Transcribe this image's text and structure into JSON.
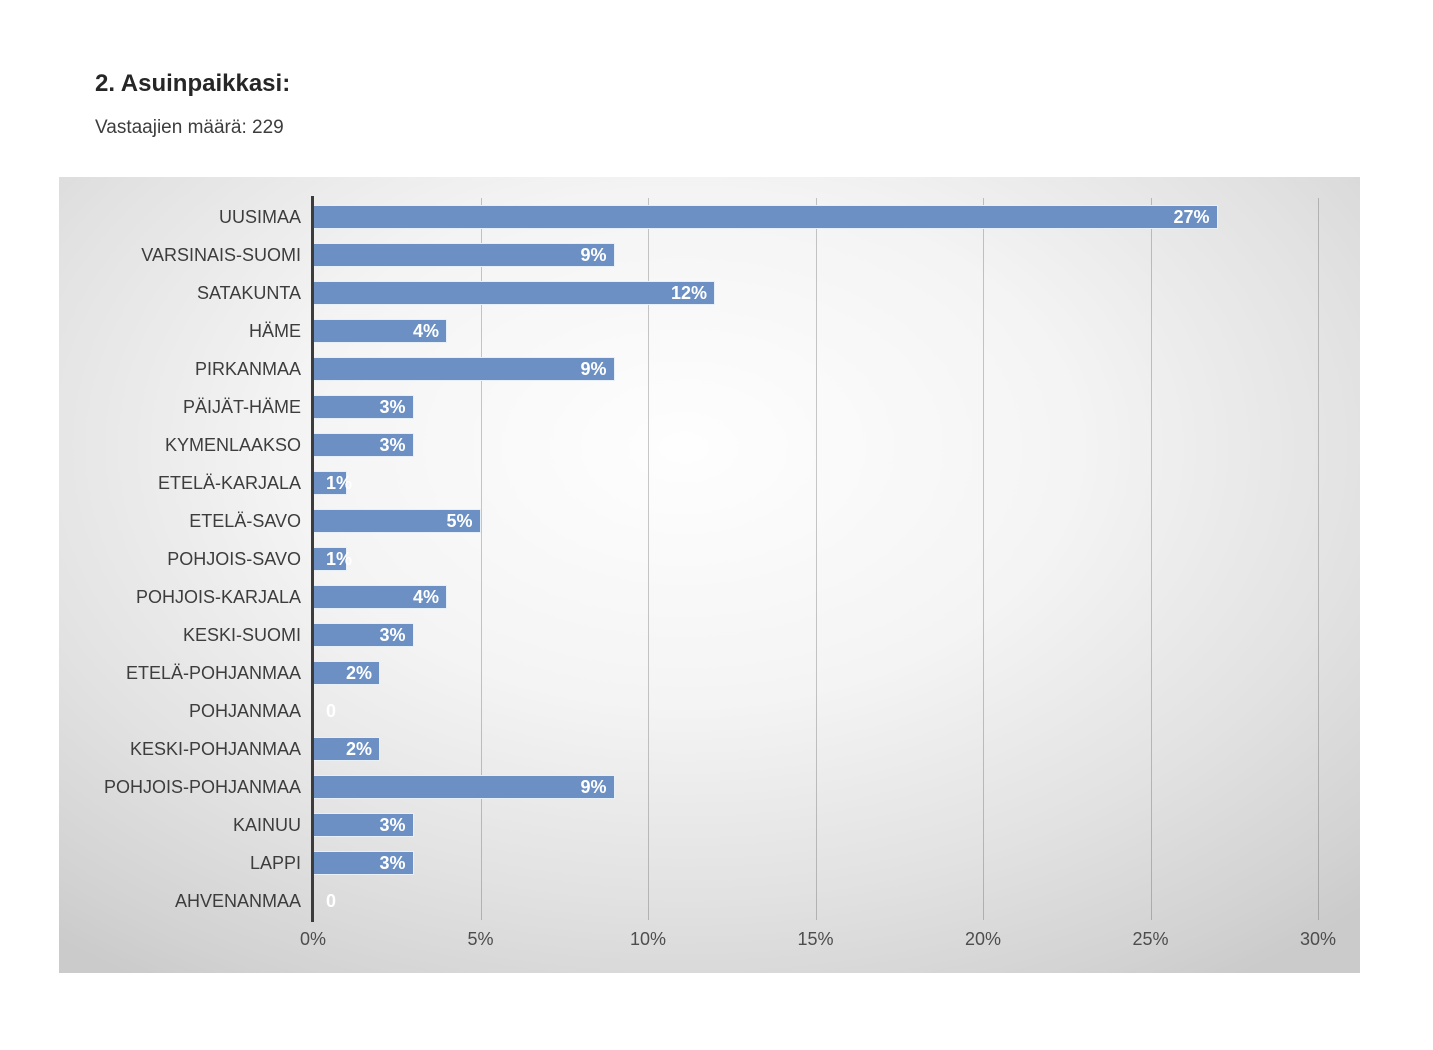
{
  "chart_data": {
    "type": "bar",
    "orientation": "horizontal",
    "title": "2. Asuinpaikkasi:",
    "subtitle": "Vastaajien määrä: 229",
    "categories": [
      "UUSIMAA",
      "VARSINAIS-SUOMI",
      "SATAKUNTA",
      "HÄME",
      "PIRKANMAA",
      "PÄIJÄT-HÄME",
      "KYMENLAAKSO",
      "ETELÄ-KARJALA",
      "ETELÄ-SAVO",
      "POHJOIS-SAVO",
      "POHJOIS-KARJALA",
      "KESKI-SUOMI",
      "ETELÄ-POHJANMAA",
      "POHJANMAA",
      "KESKI-POHJANMAA",
      "POHJOIS-POHJANMAA",
      "KAINUU",
      "LAPPI",
      "AHVENANMAA"
    ],
    "values": [
      27,
      9,
      12,
      4,
      9,
      3,
      3,
      1,
      5,
      1,
      4,
      3,
      2,
      0,
      2,
      9,
      3,
      3,
      0
    ],
    "value_labels": [
      "27%",
      "9%",
      "12%",
      "4%",
      "9%",
      "3%",
      "3%",
      "1%",
      "5%",
      "1%",
      "4%",
      "3%",
      "2%",
      "0",
      "2%",
      "9%",
      "3%",
      "3%",
      "0"
    ],
    "x_ticks": {
      "labels": [
        "0%",
        "5%",
        "10%",
        "15%",
        "20%",
        "25%",
        "30%"
      ],
      "values": [
        0,
        5,
        10,
        15,
        20,
        25,
        30
      ]
    },
    "xlim": [
      0,
      30
    ],
    "grid": true,
    "legend": false,
    "colors": {
      "bar": "#6c90c3",
      "bar_border": "#f2f6fa",
      "value_label": "#ffffff",
      "axis_line": "#3c3c3c",
      "gridline": "rgba(60,60,60,0.28)",
      "category_label": "#3d3d3d",
      "tick_label": "#4d4d4d",
      "panel_edge": "#cbcbcb"
    }
  }
}
